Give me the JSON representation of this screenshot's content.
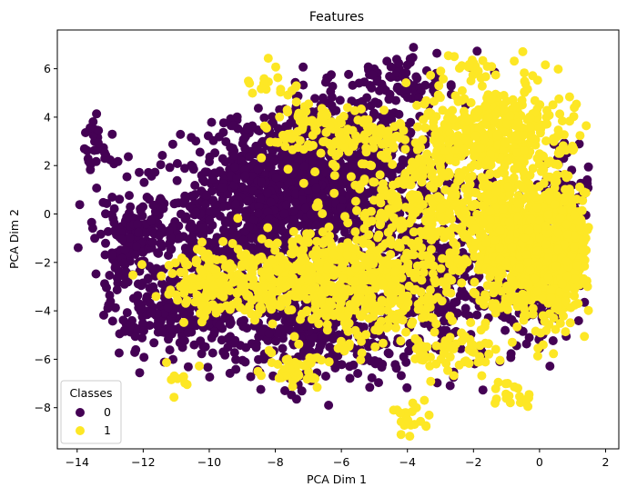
{
  "chart_data": {
    "type": "scatter",
    "title": "Features",
    "xlabel": "PCA Dim 1",
    "ylabel": "PCA Dim 2",
    "xlim": [
      -14.6,
      2.4
    ],
    "ylim": [
      -9.7,
      7.6
    ],
    "xticks": [
      -14,
      -12,
      -10,
      -8,
      -6,
      -4,
      -2,
      0,
      2
    ],
    "yticks": [
      -8,
      -6,
      -4,
      -2,
      0,
      2,
      4,
      6
    ],
    "grid": false,
    "legend": {
      "title": "Classes",
      "placement": "lower-left"
    },
    "series": [
      {
        "name": "0",
        "color": "#440154",
        "clusters": [
          {
            "cx": -7.2,
            "cy": 1.8,
            "sx": 1.3,
            "sy": 1.2,
            "n": 650
          },
          {
            "cx": -5.5,
            "cy": 1.5,
            "sx": 1.6,
            "sy": 1.9,
            "n": 550
          },
          {
            "cx": -9.2,
            "cy": -0.5,
            "sx": 1.8,
            "sy": 1.6,
            "n": 480
          },
          {
            "cx": -10.8,
            "cy": -4.2,
            "sx": 1.1,
            "sy": 0.9,
            "n": 220
          },
          {
            "cx": -6.5,
            "cy": -5.0,
            "sx": 1.3,
            "sy": 1.0,
            "n": 260
          },
          {
            "cx": -3.2,
            "cy": -2.6,
            "sx": 1.3,
            "sy": 1.8,
            "n": 380
          },
          {
            "cx": -12.3,
            "cy": -1.2,
            "sx": 0.8,
            "sy": 0.9,
            "n": 130
          },
          {
            "cx": -13.5,
            "cy": 2.6,
            "sx": 0.3,
            "sy": 0.6,
            "n": 28
          },
          {
            "cx": -4.0,
            "cy": 5.6,
            "sx": 1.1,
            "sy": 0.5,
            "n": 70
          },
          {
            "cx": -0.3,
            "cy": -3.8,
            "sx": 0.7,
            "sy": 0.8,
            "n": 90
          },
          {
            "cx": 0.8,
            "cy": 0.8,
            "sx": 0.5,
            "sy": 1.1,
            "n": 70
          },
          {
            "cx": -8.0,
            "cy": -2.5,
            "sx": 1.4,
            "sy": 1.4,
            "n": 250
          }
        ]
      },
      {
        "name": "1",
        "color": "#fde725",
        "clusters": [
          {
            "cx": -0.5,
            "cy": -1.2,
            "sx": 0.9,
            "sy": 1.3,
            "n": 800
          },
          {
            "cx": 0.4,
            "cy": -1.5,
            "sx": 0.6,
            "sy": 1.2,
            "n": 500
          },
          {
            "cx": -1.3,
            "cy": 3.4,
            "sx": 1.1,
            "sy": 1.0,
            "n": 380
          },
          {
            "cx": -3.3,
            "cy": 0.8,
            "sx": 1.2,
            "sy": 1.5,
            "n": 300
          },
          {
            "cx": -7.0,
            "cy": -2.6,
            "sx": 1.6,
            "sy": 1.0,
            "n": 360
          },
          {
            "cx": -9.8,
            "cy": -2.8,
            "sx": 0.9,
            "sy": 0.6,
            "n": 140
          },
          {
            "cx": -5.0,
            "cy": -3.0,
            "sx": 1.2,
            "sy": 1.3,
            "n": 250
          },
          {
            "cx": -6.0,
            "cy": 3.4,
            "sx": 1.1,
            "sy": 0.6,
            "n": 130
          },
          {
            "cx": -7.3,
            "cy": -6.5,
            "sx": 0.6,
            "sy": 0.4,
            "n": 40
          },
          {
            "cx": -3.9,
            "cy": -8.4,
            "sx": 0.3,
            "sy": 0.4,
            "n": 22
          },
          {
            "cx": -1.0,
            "cy": -7.5,
            "sx": 0.5,
            "sy": 0.3,
            "n": 18
          },
          {
            "cx": -1.8,
            "cy": 6.0,
            "sx": 0.4,
            "sy": 0.3,
            "n": 20
          },
          {
            "cx": -10.8,
            "cy": -6.8,
            "sx": 0.3,
            "sy": 0.3,
            "n": 10
          },
          {
            "cx": -8.0,
            "cy": 5.3,
            "sx": 0.5,
            "sy": 0.3,
            "n": 18
          },
          {
            "cx": -2.6,
            "cy": -5.8,
            "sx": 0.8,
            "sy": 0.5,
            "n": 60
          }
        ]
      }
    ]
  }
}
